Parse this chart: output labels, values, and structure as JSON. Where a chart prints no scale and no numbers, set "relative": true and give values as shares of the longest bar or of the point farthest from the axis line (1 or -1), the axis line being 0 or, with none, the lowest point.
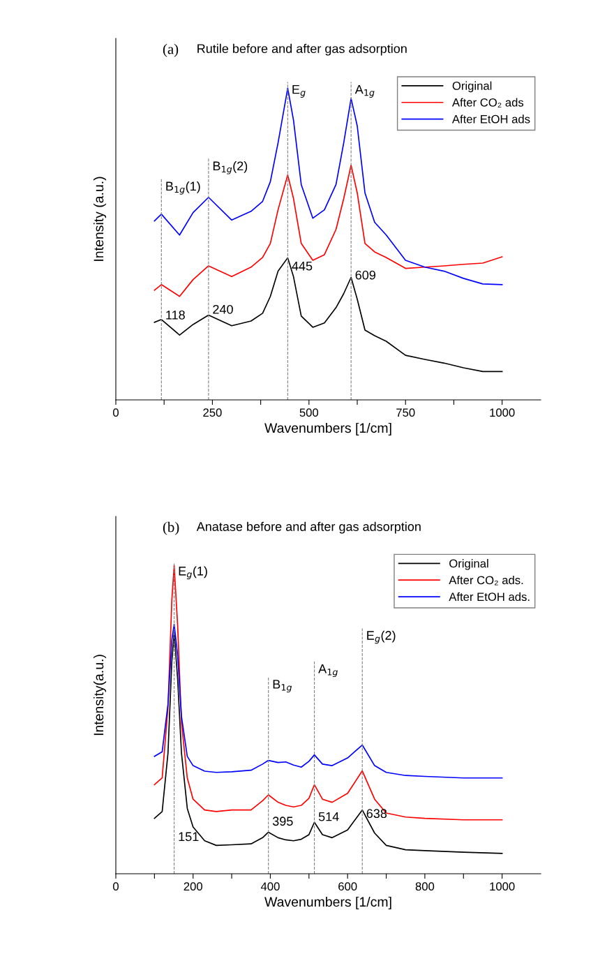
{
  "chart_data": [
    {
      "type": "line",
      "title": "(a)",
      "subtitle": "Rutile before and after gas adsorption",
      "xlabel": "Wavenumbers [1/cm]",
      "ylabel": "Intensity (a.u.)",
      "relative": true,
      "legend": "top right",
      "tick_labels": "x",
      "xlim": [
        0,
        1100
      ],
      "xticks": [
        0,
        {
          "value": 125,
          "label": null
        },
        250,
        {
          "value": 375,
          "label": null
        },
        500,
        {
          "value": 625,
          "label": null
        },
        750,
        {
          "value": 875,
          "label": null
        },
        1000
      ],
      "x": [
        100,
        118,
        165,
        200,
        240,
        300,
        350,
        380,
        400,
        420,
        445,
        460,
        480,
        510,
        540,
        570,
        590,
        609,
        625,
        645,
        670,
        700,
        750,
        800,
        850,
        900,
        950,
        1000
      ],
      "series": [
        {
          "name": "Original",
          "color": "#000000",
          "values": [
            0.249,
            0.258,
            0.208,
            0.242,
            0.272,
            0.238,
            0.253,
            0.278,
            0.332,
            0.413,
            0.456,
            0.395,
            0.269,
            0.233,
            0.247,
            0.296,
            0.341,
            0.393,
            0.323,
            0.224,
            0.206,
            0.188,
            0.143,
            0.13,
            0.118,
            0.103,
            0.091,
            0.091
          ]
        },
        {
          "name": "After CO₂ ads",
          "color": "#ff0000",
          "values": [
            0.352,
            0.37,
            0.332,
            0.386,
            0.43,
            0.396,
            0.426,
            0.457,
            0.502,
            0.61,
            0.722,
            0.646,
            0.502,
            0.448,
            0.466,
            0.547,
            0.646,
            0.753,
            0.664,
            0.502,
            0.475,
            0.457,
            0.422,
            0.426,
            0.43,
            0.435,
            0.439,
            0.459
          ]
        },
        {
          "name": "After EtOH ads",
          "color": "#0000ff",
          "values": [
            0.574,
            0.596,
            0.529,
            0.601,
            0.65,
            0.577,
            0.605,
            0.637,
            0.7,
            0.825,
            1.0,
            0.897,
            0.691,
            0.583,
            0.61,
            0.691,
            0.825,
            0.967,
            0.879,
            0.664,
            0.57,
            0.529,
            0.448,
            0.426,
            0.413,
            0.39,
            0.372,
            0.37
          ]
        }
      ],
      "ref_lines": [
        {
          "axis": "x",
          "value": 118,
          "color": "#808080",
          "line_style": "dashed"
        },
        {
          "axis": "x",
          "value": 240,
          "color": "#808080",
          "line_style": "dashed"
        },
        {
          "axis": "x",
          "value": 445,
          "color": "#808080",
          "line_style": "dashed"
        },
        {
          "axis": "x",
          "value": 609,
          "color": "#808080",
          "line_style": "dashed"
        }
      ],
      "annotations": [
        {
          "text": "B$_{1g}$(1)",
          "x": 118,
          "y": 0.68
        },
        {
          "text": "B$_{1g}$(2)",
          "x": 240,
          "y": 0.745
        },
        {
          "text": "E$_{g}$",
          "x": 445,
          "y": 0.99
        },
        {
          "text": "A$_{1g}$",
          "x": 609,
          "y": 0.99
        },
        {
          "text": "118",
          "x": 118,
          "y": 0.269
        },
        {
          "text": "240",
          "x": 240,
          "y": 0.287
        },
        {
          "text": "445",
          "x": 445,
          "y": 0.426
        },
        {
          "text": "609",
          "x": 609,
          "y": 0.397
        }
      ]
    },
    {
      "type": "line",
      "title": "(b)",
      "subtitle": "Anatase before and after gas adsorption",
      "xlabel": "Wavenumbers [1/cm]",
      "ylabel": "Intensity(a.u.)",
      "relative": true,
      "legend": "top right",
      "tick_labels": "x",
      "xlim": [
        0,
        1100
      ],
      "xticks": [
        0,
        {
          "value": 100,
          "label": null
        },
        200,
        {
          "value": 300,
          "label": null
        },
        400,
        {
          "value": 500,
          "label": null
        },
        600,
        {
          "value": 700,
          "label": null
        },
        800,
        {
          "value": 900,
          "label": null
        },
        1000
      ],
      "x": [
        100,
        120,
        135,
        145,
        151,
        160,
        170,
        185,
        200,
        230,
        260,
        300,
        350,
        380,
        395,
        420,
        440,
        460,
        480,
        500,
        514,
        535,
        560,
        600,
        638,
        670,
        700,
        750,
        800,
        900,
        1000
      ],
      "series": [
        {
          "name": "Original",
          "color": "#000000",
          "values": [
            0.18,
            0.202,
            0.391,
            0.689,
            0.783,
            0.633,
            0.391,
            0.212,
            0.152,
            0.107,
            0.092,
            0.094,
            0.097,
            0.117,
            0.135,
            0.117,
            0.11,
            0.107,
            0.112,
            0.127,
            0.167,
            0.127,
            0.117,
            0.142,
            0.207,
            0.132,
            0.092,
            0.078,
            0.075,
            0.07,
            0.066
          ]
        },
        {
          "name": "After CO₂ ads.",
          "color": "#ff0000",
          "values": [
            0.289,
            0.311,
            0.54,
            0.888,
            1.0,
            0.808,
            0.49,
            0.311,
            0.242,
            0.207,
            0.202,
            0.207,
            0.207,
            0.237,
            0.256,
            0.232,
            0.222,
            0.217,
            0.222,
            0.245,
            0.289,
            0.242,
            0.232,
            0.261,
            0.334,
            0.242,
            0.197,
            0.184,
            0.18,
            0.175,
            0.175
          ]
        },
        {
          "name": "After EtOH ads.",
          "color": "#0000ff",
          "values": [
            0.381,
            0.396,
            0.55,
            0.758,
            0.81,
            0.709,
            0.51,
            0.381,
            0.351,
            0.333,
            0.329,
            0.331,
            0.336,
            0.356,
            0.368,
            0.361,
            0.363,
            0.353,
            0.346,
            0.365,
            0.386,
            0.356,
            0.351,
            0.376,
            0.418,
            0.351,
            0.329,
            0.319,
            0.316,
            0.311,
            0.311
          ]
        }
      ],
      "ref_lines": [
        {
          "axis": "x",
          "value": 151,
          "color": "#808080",
          "line_style": "dashed"
        },
        {
          "axis": "x",
          "value": 395,
          "color": "#808080",
          "line_style": "dashed"
        },
        {
          "axis": "x",
          "value": 514,
          "color": "#808080",
          "line_style": "dashed"
        },
        {
          "axis": "x",
          "value": 638,
          "color": "#808080",
          "line_style": "dashed"
        }
      ],
      "annotations": [
        {
          "text": "E$_{g}$(1)",
          "x": 151,
          "y": 0.977
        },
        {
          "text": "B$_{1g}$",
          "x": 395,
          "y": 0.609
        },
        {
          "text": "A$_{1g}$",
          "x": 514,
          "y": 0.659
        },
        {
          "text": "E$_{g}$(2)",
          "x": 638,
          "y": 0.768
        },
        {
          "text": "151",
          "x": 151,
          "y": 0.117
        },
        {
          "text": "395",
          "x": 395,
          "y": 0.167
        },
        {
          "text": "514",
          "x": 514,
          "y": 0.182
        },
        {
          "text": "638",
          "x": 638,
          "y": 0.192
        }
      ]
    }
  ]
}
